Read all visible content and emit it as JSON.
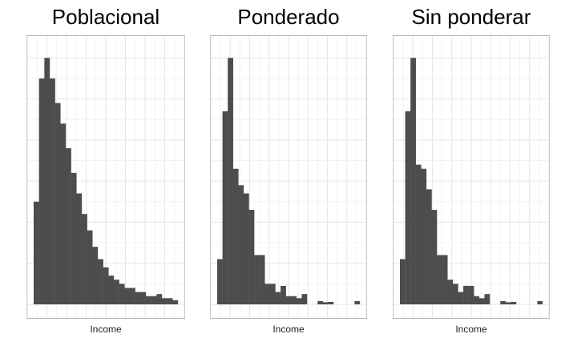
{
  "chart_data": [
    {
      "type": "bar",
      "title": "Poblacional",
      "xlabel": "Income",
      "ylabel": "",
      "grid": true,
      "ylim": [
        0,
        62
      ],
      "values": [
        25,
        55,
        60,
        55,
        49,
        44,
        38,
        32,
        27,
        22,
        18,
        14,
        11,
        9,
        7,
        6,
        5,
        4,
        4,
        3,
        3,
        2,
        2,
        2.5,
        1.5,
        1.5,
        1
      ]
    },
    {
      "type": "bar",
      "title": "Ponderado",
      "xlabel": "Income",
      "ylabel": "",
      "grid": true,
      "ylim": [
        0,
        62
      ],
      "values": [
        11,
        47,
        60,
        33,
        29,
        27,
        23,
        12,
        12,
        5,
        5,
        3,
        4.5,
        2,
        2,
        1.5,
        2.5,
        0,
        0,
        0.8,
        0.5,
        0.6,
        0,
        0,
        0,
        0,
        0.8
      ]
    },
    {
      "type": "bar",
      "title": "Sin ponderar",
      "xlabel": "Income",
      "ylabel": "",
      "grid": true,
      "ylim": [
        0,
        62
      ],
      "values": [
        11,
        47,
        60,
        34,
        33,
        28,
        23,
        12,
        12,
        6,
        5,
        3,
        4.5,
        4.5,
        2,
        1.5,
        2.5,
        0,
        0,
        0.8,
        0.5,
        0.6,
        0,
        0,
        0,
        0,
        0.8
      ]
    }
  ]
}
